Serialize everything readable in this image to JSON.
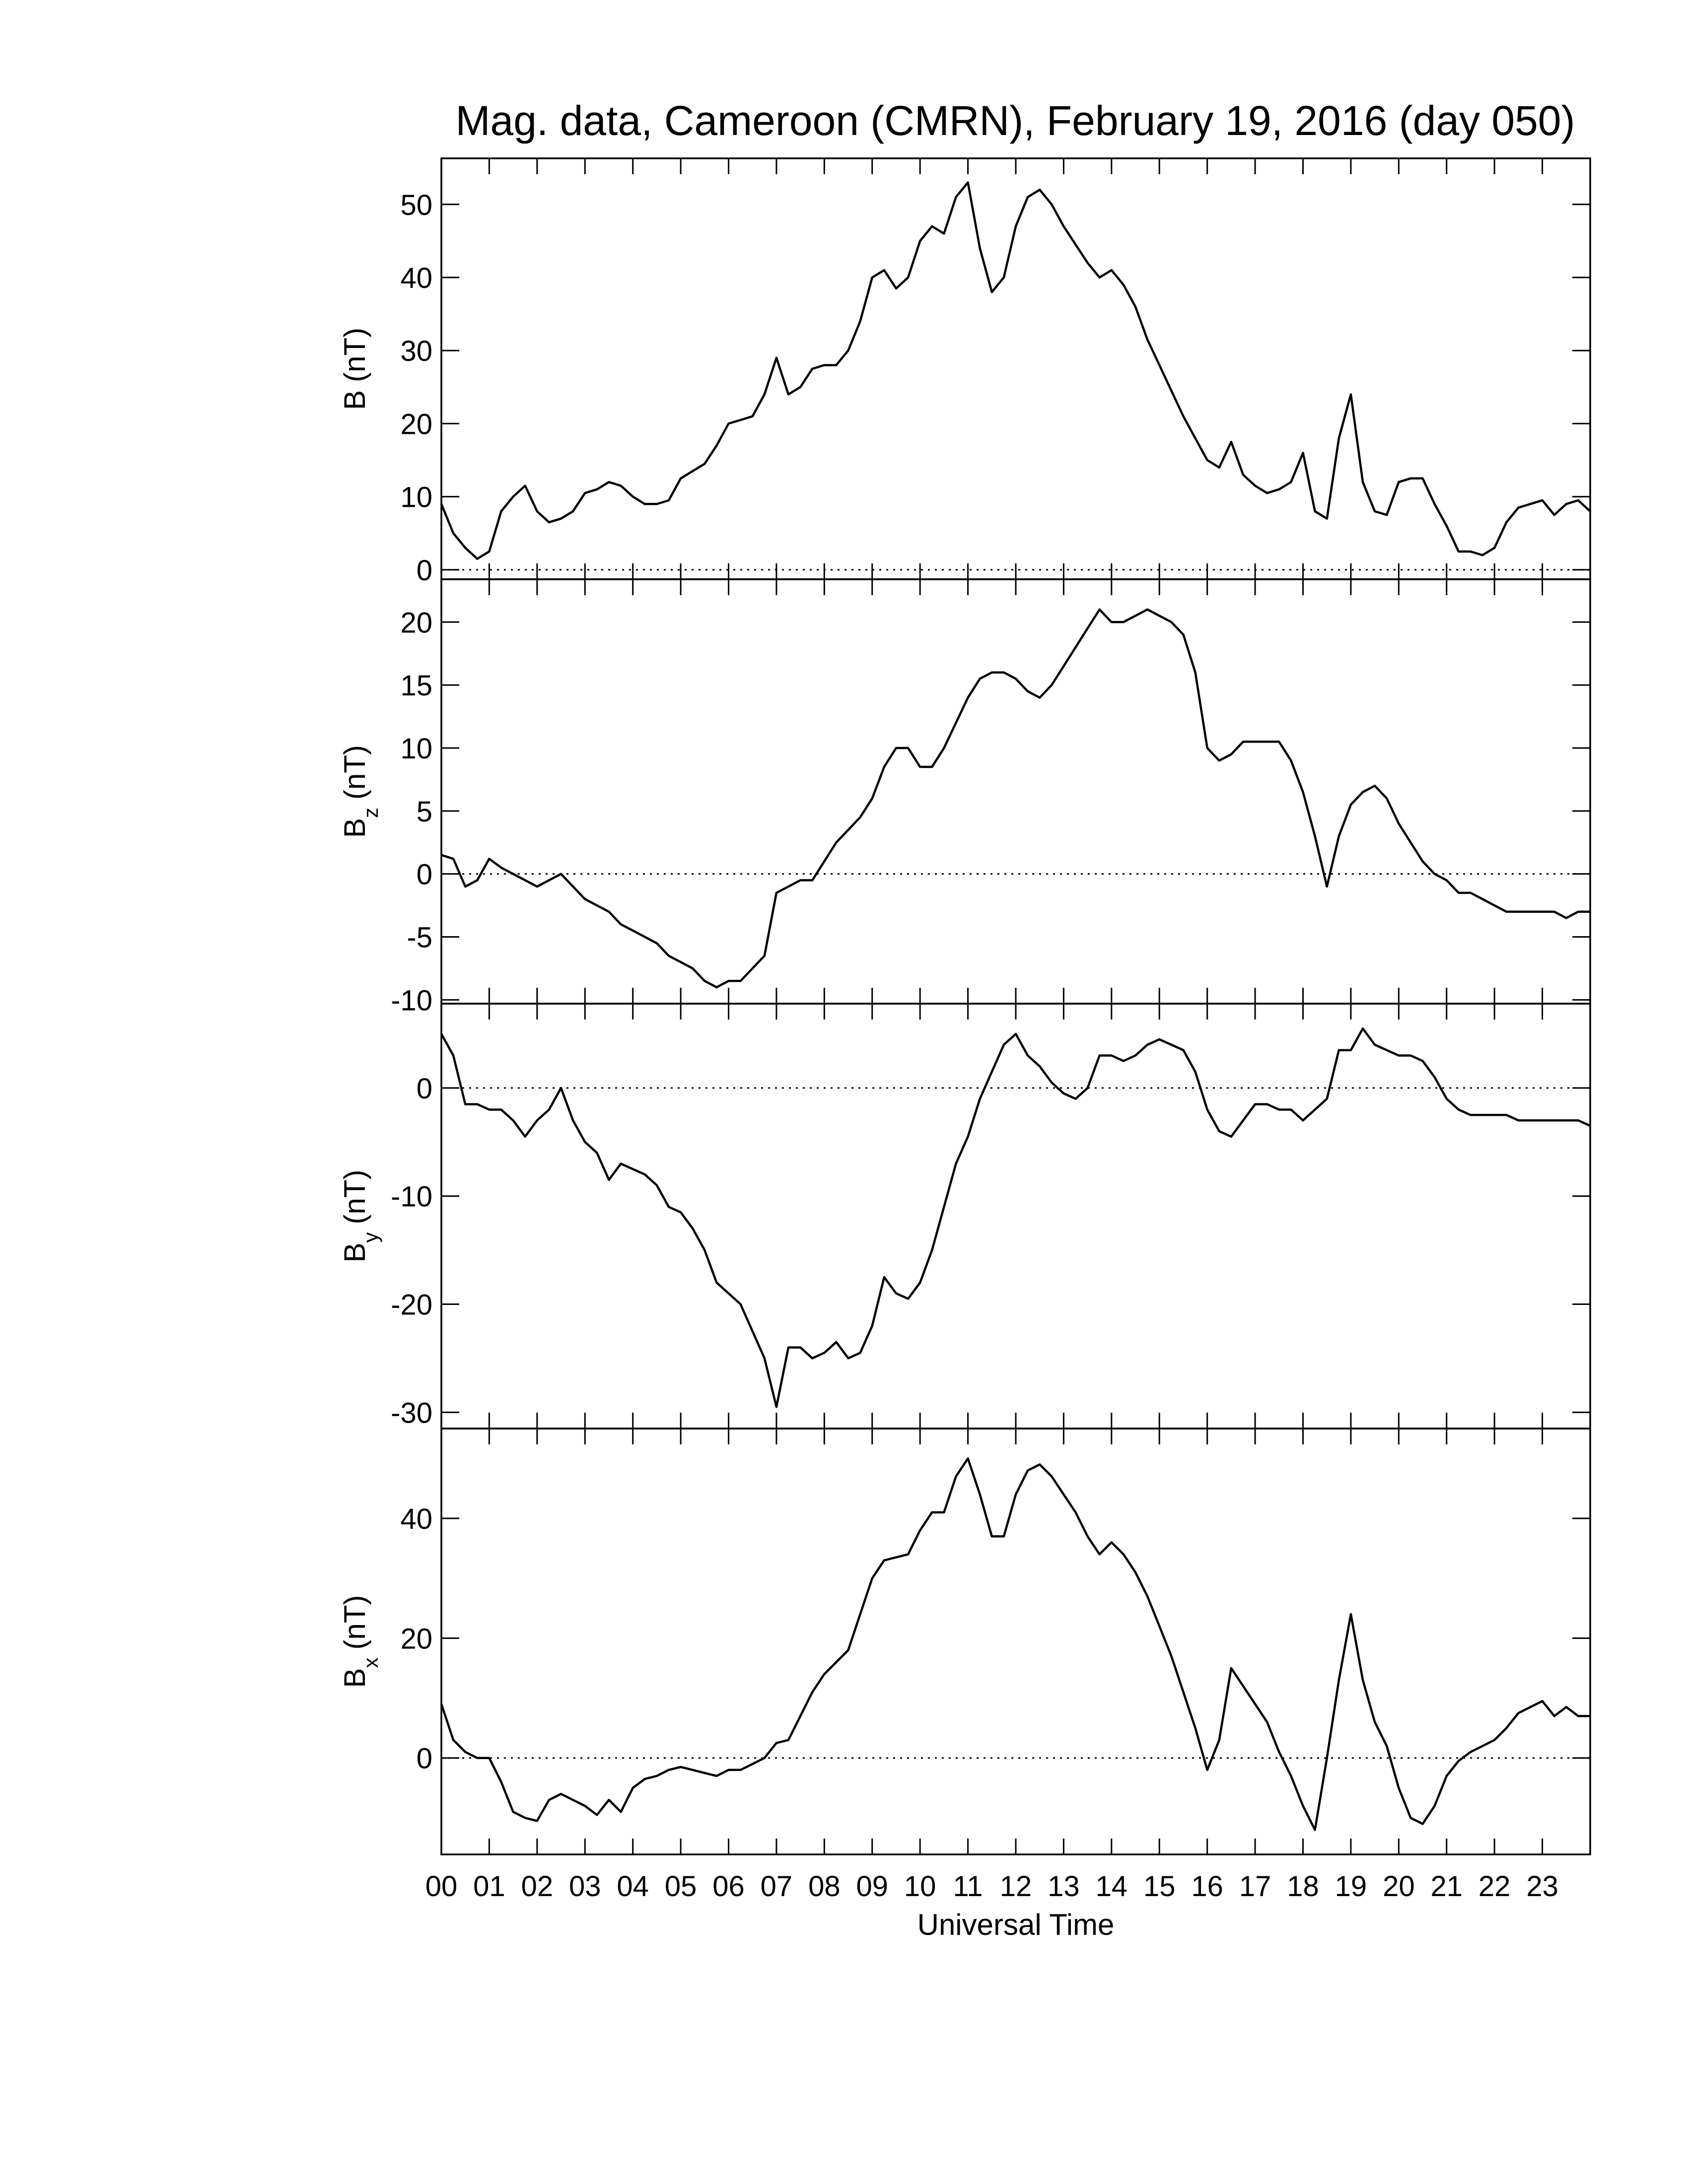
{
  "chart_data": [
    {
      "type": "line",
      "title": "Mag. data, Cameroon (CMRN), February 19, 2016 (day 050)",
      "ylabel": "B",
      "ylabel_unit": "(nT)",
      "color": "#000000",
      "hline": 0,
      "xlim": [
        0,
        24
      ],
      "ylim": [
        -1.3,
        56.3
      ],
      "yticks": [
        0,
        10,
        20,
        30,
        40,
        50
      ],
      "x": [
        0,
        0.25,
        0.5,
        0.75,
        1,
        1.25,
        1.5,
        1.75,
        2,
        2.25,
        2.5,
        2.75,
        3,
        3.25,
        3.5,
        3.75,
        4,
        4.25,
        4.5,
        4.75,
        5,
        5.25,
        5.5,
        5.75,
        6,
        6.25,
        6.5,
        6.75,
        7,
        7.25,
        7.5,
        7.75,
        8,
        8.25,
        8.5,
        8.75,
        9,
        9.25,
        9.5,
        9.75,
        10,
        10.25,
        10.5,
        10.75,
        11,
        11.25,
        11.5,
        11.75,
        12,
        12.25,
        12.5,
        12.75,
        13,
        13.25,
        13.5,
        13.75,
        14,
        14.25,
        14.5,
        14.75,
        15,
        15.25,
        15.5,
        15.75,
        16,
        16.25,
        16.5,
        16.75,
        17,
        17.25,
        17.5,
        17.75,
        18,
        18.25,
        18.5,
        18.75,
        19,
        19.25,
        19.5,
        19.75,
        20,
        20.25,
        20.5,
        20.75,
        21,
        21.25,
        21.5,
        21.75,
        22,
        22.25,
        22.5,
        22.75,
        23,
        23.25,
        23.5,
        23.75,
        24
      ],
      "values": [
        9,
        5,
        3,
        1.5,
        2.5,
        8,
        10,
        11.5,
        8,
        6.5,
        7,
        8,
        10.5,
        11,
        12,
        11.5,
        10,
        9,
        9,
        9.5,
        12.5,
        13.5,
        14.5,
        17,
        20,
        20.5,
        21,
        24,
        29,
        24,
        25,
        27.5,
        28,
        28,
        30,
        34,
        40,
        41,
        38.5,
        40,
        45,
        47,
        46,
        51,
        53,
        44,
        38,
        40,
        47,
        51,
        52,
        50,
        47,
        44.5,
        42,
        40,
        41,
        39,
        36,
        31.5,
        28,
        24.5,
        21,
        18,
        15,
        14,
        17.5,
        13,
        11.5,
        10.5,
        11,
        12,
        16,
        8,
        7,
        18,
        24,
        12,
        8,
        7.5,
        12,
        12.5,
        12.5,
        9,
        6,
        2.5,
        2.5,
        2,
        3,
        6.5,
        8.5,
        9,
        9.5,
        7.5,
        9,
        9.5,
        8
      ]
    },
    {
      "type": "line",
      "ylabel": "B",
      "ylabel_sub": "z",
      "ylabel_unit": "(nT)",
      "color": "#000000",
      "hline": 0,
      "xlim": [
        0,
        24
      ],
      "ylim": [
        -10.3,
        23.4
      ],
      "yticks": [
        -10,
        -5,
        0,
        5,
        10,
        15,
        20
      ],
      "x": [
        0,
        0.25,
        0.5,
        0.75,
        1,
        1.25,
        1.5,
        1.75,
        2,
        2.25,
        2.5,
        2.75,
        3,
        3.25,
        3.5,
        3.75,
        4,
        4.25,
        4.5,
        4.75,
        5,
        5.25,
        5.5,
        5.75,
        6,
        6.25,
        6.5,
        6.75,
        7,
        7.25,
        7.5,
        7.75,
        8,
        8.25,
        8.5,
        8.75,
        9,
        9.25,
        9.5,
        9.75,
        10,
        10.25,
        10.5,
        10.75,
        11,
        11.25,
        11.5,
        11.75,
        12,
        12.25,
        12.5,
        12.75,
        13,
        13.25,
        13.5,
        13.75,
        14,
        14.25,
        14.5,
        14.75,
        15,
        15.25,
        15.5,
        15.75,
        16,
        16.25,
        16.5,
        16.75,
        17,
        17.25,
        17.5,
        17.75,
        18,
        18.25,
        18.5,
        18.75,
        19,
        19.25,
        19.5,
        19.75,
        20,
        20.25,
        20.5,
        20.75,
        21,
        21.25,
        21.5,
        21.75,
        22,
        22.25,
        22.5,
        22.75,
        23,
        23.25,
        23.5,
        23.75,
        24
      ],
      "values": [
        1.5,
        1.2,
        -1,
        -0.5,
        1.2,
        0.5,
        0,
        -0.5,
        -1,
        -0.5,
        0,
        -1,
        -2,
        -2.5,
        -3,
        -4,
        -4.5,
        -5,
        -5.5,
        -6.5,
        -7,
        -7.5,
        -8.5,
        -9,
        -8.5,
        -8.5,
        -7.5,
        -6.5,
        -1.5,
        -1,
        -0.5,
        -0.5,
        1,
        2.5,
        3.5,
        4.5,
        6,
        8.5,
        10,
        10,
        8.5,
        8.5,
        10,
        12,
        14,
        15.5,
        16,
        16,
        15.5,
        14.5,
        14,
        15,
        16.5,
        18,
        19.5,
        21,
        20,
        20,
        20.5,
        21,
        20.5,
        20,
        19,
        16,
        10,
        9,
        9.5,
        10.5,
        10.5,
        10.5,
        10.5,
        9,
        6.5,
        3,
        -1,
        3,
        5.5,
        6.5,
        7,
        6,
        4,
        2.5,
        1,
        0,
        -0.5,
        -1.5,
        -1.5,
        -2,
        -2.5,
        -3,
        -3,
        -3,
        -3,
        -3,
        -3.5,
        -3,
        -3
      ]
    },
    {
      "type": "line",
      "ylabel": "B",
      "ylabel_sub": "y",
      "ylabel_unit": "(nT)",
      "color": "#000000",
      "hline": 0,
      "xlim": [
        0,
        24
      ],
      "ylim": [
        -31.5,
        7.8
      ],
      "yticks": [
        -30,
        -20,
        -10,
        0
      ],
      "x": [
        0,
        0.25,
        0.5,
        0.75,
        1,
        1.25,
        1.5,
        1.75,
        2,
        2.25,
        2.5,
        2.75,
        3,
        3.25,
        3.5,
        3.75,
        4,
        4.25,
        4.5,
        4.75,
        5,
        5.25,
        5.5,
        5.75,
        6,
        6.25,
        6.5,
        6.75,
        7,
        7.25,
        7.5,
        7.75,
        8,
        8.25,
        8.5,
        8.75,
        9,
        9.25,
        9.5,
        9.75,
        10,
        10.25,
        10.5,
        10.75,
        11,
        11.25,
        11.5,
        11.75,
        12,
        12.25,
        12.5,
        12.75,
        13,
        13.25,
        13.5,
        13.75,
        14,
        14.25,
        14.5,
        14.75,
        15,
        15.25,
        15.5,
        15.75,
        16,
        16.25,
        16.5,
        16.75,
        17,
        17.25,
        17.5,
        17.75,
        18,
        18.25,
        18.5,
        18.75,
        19,
        19.25,
        19.5,
        19.75,
        20,
        20.25,
        20.5,
        20.75,
        21,
        21.25,
        21.5,
        21.75,
        22,
        22.25,
        22.5,
        22.75,
        23,
        23.25,
        23.5,
        23.75,
        24
      ],
      "values": [
        5,
        3,
        -1.5,
        -1.5,
        -2,
        -2,
        -3,
        -4.5,
        -3,
        -2,
        0,
        -3,
        -5,
        -6,
        -8.5,
        -7,
        -7.5,
        -8,
        -9,
        -11,
        -11.5,
        -13,
        -15,
        -18,
        -19,
        -20,
        -22.5,
        -25,
        -29.5,
        -24,
        -24,
        -25,
        -24.5,
        -23.5,
        -25,
        -24.5,
        -22,
        -17.5,
        -19,
        -19.5,
        -18,
        -15,
        -11,
        -7,
        -4.5,
        -1,
        1.5,
        4,
        5,
        3,
        2,
        0.5,
        -0.5,
        -1,
        0,
        3,
        3,
        2.5,
        3,
        4,
        4.5,
        4,
        3.5,
        1.5,
        -2,
        -4,
        -4.5,
        -3,
        -1.5,
        -1.5,
        -2,
        -2,
        -3,
        -2,
        -1,
        3.5,
        3.5,
        5.5,
        4,
        3.5,
        3,
        3,
        2.5,
        1,
        -1,
        -2,
        -2.5,
        -2.5,
        -2.5,
        -2.5,
        -3,
        -3,
        -3,
        -3,
        -3,
        -3,
        -3.5
      ]
    },
    {
      "type": "line",
      "ylabel": "B",
      "ylabel_sub": "x",
      "ylabel_unit": "(nT)",
      "xlabel": "Universal Time",
      "color": "#000000",
      "hline": 0,
      "xlim": [
        0,
        24
      ],
      "ylim": [
        -16.1,
        55
      ],
      "yticks": [
        0,
        20,
        40
      ],
      "xticks": [
        {
          "value": 0,
          "label": "00"
        },
        {
          "value": 1,
          "label": "01"
        },
        {
          "value": 2,
          "label": "02"
        },
        {
          "value": 3,
          "label": "03"
        },
        {
          "value": 4,
          "label": "04"
        },
        {
          "value": 5,
          "label": "05"
        },
        {
          "value": 6,
          "label": "06"
        },
        {
          "value": 7,
          "label": "07"
        },
        {
          "value": 8,
          "label": "08"
        },
        {
          "value": 9,
          "label": "09"
        },
        {
          "value": 10,
          "label": "10"
        },
        {
          "value": 11,
          "label": "11"
        },
        {
          "value": 12,
          "label": "12"
        },
        {
          "value": 13,
          "label": "13"
        },
        {
          "value": 14,
          "label": "14"
        },
        {
          "value": 15,
          "label": "15"
        },
        {
          "value": 16,
          "label": "16"
        },
        {
          "value": 17,
          "label": "17"
        },
        {
          "value": 18,
          "label": "18"
        },
        {
          "value": 19,
          "label": "19"
        },
        {
          "value": 20,
          "label": "20"
        },
        {
          "value": 21,
          "label": "21"
        },
        {
          "value": 22,
          "label": "22"
        },
        {
          "value": 23,
          "label": "23"
        }
      ],
      "x": [
        0,
        0.25,
        0.5,
        0.75,
        1,
        1.25,
        1.5,
        1.75,
        2,
        2.25,
        2.5,
        2.75,
        3,
        3.25,
        3.5,
        3.75,
        4,
        4.25,
        4.5,
        4.75,
        5,
        5.25,
        5.5,
        5.75,
        6,
        6.25,
        6.5,
        6.75,
        7,
        7.25,
        7.5,
        7.75,
        8,
        8.25,
        8.5,
        8.75,
        9,
        9.25,
        9.5,
        9.75,
        10,
        10.25,
        10.5,
        10.75,
        11,
        11.25,
        11.5,
        11.75,
        12,
        12.25,
        12.5,
        12.75,
        13,
        13.25,
        13.5,
        13.75,
        14,
        14.25,
        14.5,
        14.75,
        15,
        15.25,
        15.5,
        15.75,
        16,
        16.25,
        16.5,
        16.75,
        17,
        17.25,
        17.5,
        17.75,
        18,
        18.25,
        18.5,
        18.75,
        19,
        19.25,
        19.5,
        19.75,
        20,
        20.25,
        20.5,
        20.75,
        21,
        21.25,
        21.5,
        21.75,
        22,
        22.25,
        22.5,
        22.75,
        23,
        23.25,
        23.5,
        23.75,
        24
      ],
      "values": [
        9,
        3,
        1,
        0,
        0,
        -4,
        -9,
        -10,
        -10.5,
        -7,
        -6,
        -7,
        -8,
        -9.5,
        -7,
        -9,
        -5,
        -3.5,
        -3,
        -2,
        -1.5,
        -2,
        -2.5,
        -3,
        -2,
        -2,
        -1,
        0,
        2.5,
        3,
        7,
        11,
        14,
        16,
        18,
        24,
        30,
        33,
        33.5,
        34,
        38,
        41,
        41,
        47,
        50,
        44,
        37,
        37,
        44,
        48,
        49,
        47,
        44,
        41,
        37,
        34,
        36,
        34,
        31,
        27,
        22,
        17,
        11,
        5,
        -2,
        3,
        15,
        12,
        9,
        6,
        1,
        -3,
        -8,
        -12,
        0,
        13,
        24,
        13,
        6,
        2,
        -5,
        -10,
        -11,
        -8,
        -3,
        -0.5,
        1,
        2,
        3,
        5,
        7.5,
        8.5,
        9.5,
        7,
        8.5,
        7,
        7
      ]
    }
  ]
}
